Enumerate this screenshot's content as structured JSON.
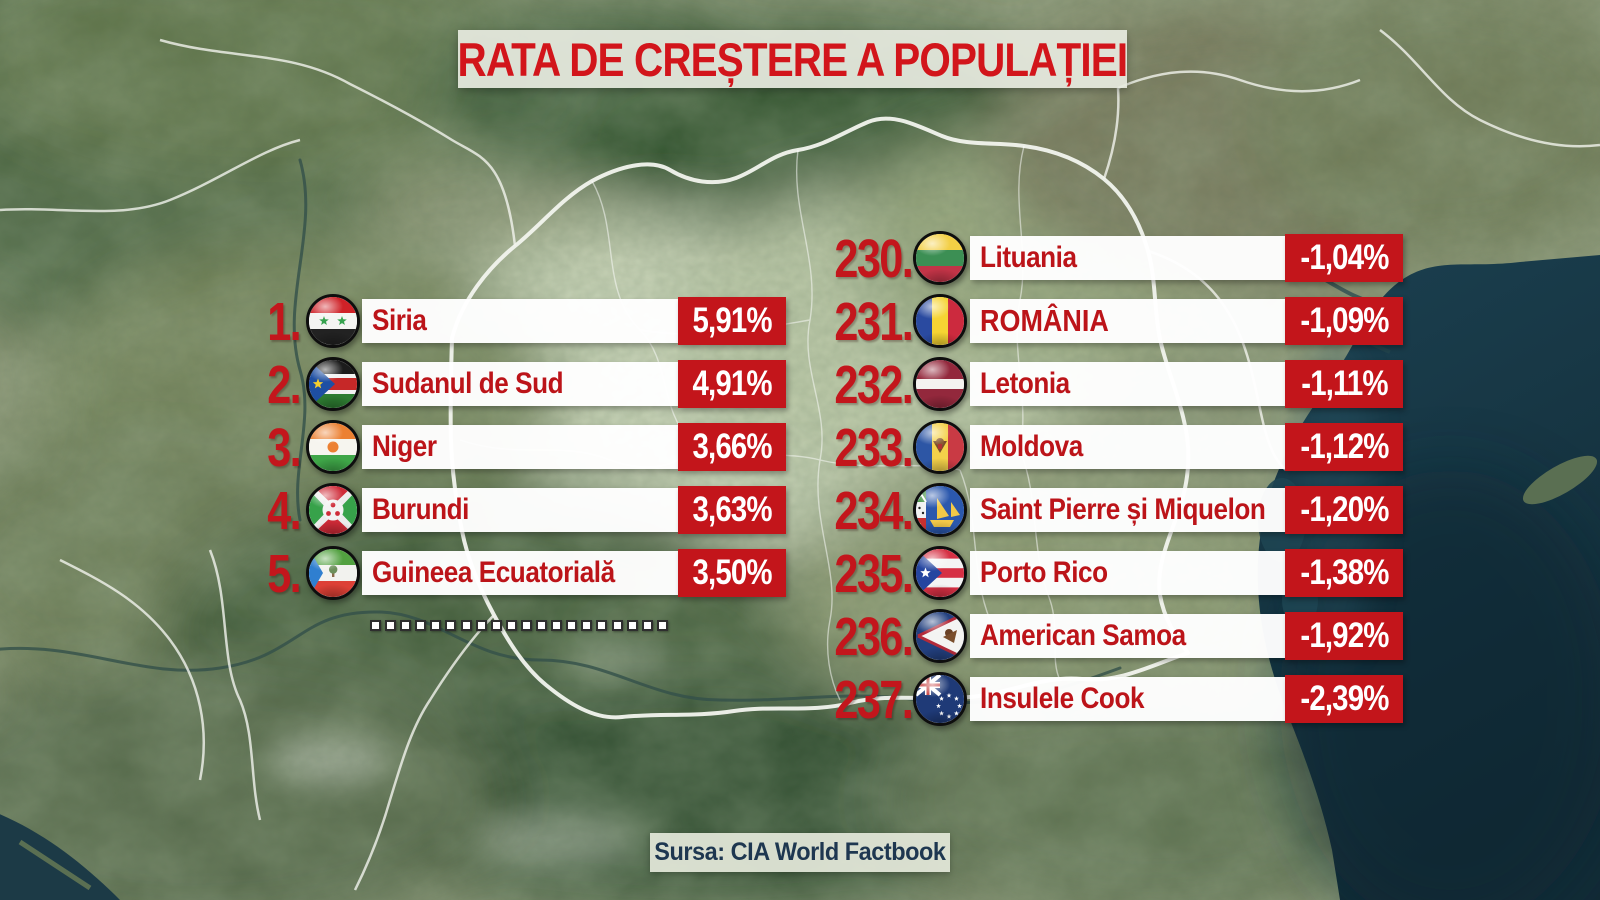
{
  "title": "RATA DE CREȘTERE A POPULAȚIEI",
  "source": "Sursa: CIA World Factbook",
  "colors": {
    "accent_red": "#c3151b",
    "title_red": "#d2151b",
    "country_red": "#bc1419",
    "value_text": "#ffffff",
    "source_text": "#1e3750",
    "sea": "#16323d"
  },
  "left_list": [
    {
      "rank": "1.",
      "country": "Siria",
      "value": "5,91%",
      "flag": "syria-flag"
    },
    {
      "rank": "2.",
      "country": "Sudanul de Sud",
      "value": "4,91%",
      "flag": "south-sudan-flag"
    },
    {
      "rank": "3.",
      "country": "Niger",
      "value": "3,66%",
      "flag": "niger-flag"
    },
    {
      "rank": "4.",
      "country": "Burundi",
      "value": "3,63%",
      "flag": "burundi-flag"
    },
    {
      "rank": "5.",
      "country": "Guineea Ecuatorială",
      "value": "3,50%",
      "flag": "equatorial-guinea-flag"
    }
  ],
  "right_list": [
    {
      "rank": "230.",
      "country": "Lituania",
      "value": "-1,04%",
      "flag": "lithuania-flag",
      "emphasis": false
    },
    {
      "rank": "231.",
      "country": "ROMÂNIA",
      "value": "-1,09%",
      "flag": "romania-flag",
      "emphasis": true
    },
    {
      "rank": "232.",
      "country": "Letonia",
      "value": "-1,11%",
      "flag": "latvia-flag",
      "emphasis": false
    },
    {
      "rank": "233.",
      "country": "Moldova",
      "value": "-1,12%",
      "flag": "moldova-flag",
      "emphasis": false
    },
    {
      "rank": "234.",
      "country": "Saint Pierre și Miquelon",
      "value": "-1,20%",
      "flag": "saint-pierre-miquelon-flag",
      "emphasis": false
    },
    {
      "rank": "235.",
      "country": "Porto Rico",
      "value": "-1,38%",
      "flag": "puerto-rico-flag",
      "emphasis": false
    },
    {
      "rank": "236.",
      "country": "American Samoa",
      "value": "-1,92%",
      "flag": "american-samoa-flag",
      "emphasis": false
    },
    {
      "rank": "237.",
      "country": "Insulele Cook",
      "value": "-2,39%",
      "flag": "cook-islands-flag",
      "emphasis": false
    }
  ],
  "separator": {
    "count": 20
  },
  "chart_data": {
    "type": "table",
    "title": "RATA DE CREȘTERE A POPULAȚIEI",
    "columns": [
      "rank",
      "country",
      "growth_rate_percent"
    ],
    "series": [
      {
        "name": "top_5",
        "rows": [
          [
            1,
            "Siria",
            5.91
          ],
          [
            2,
            "Sudanul de Sud",
            4.91
          ],
          [
            3,
            "Niger",
            3.66
          ],
          [
            4,
            "Burundi",
            3.63
          ],
          [
            5,
            "Guineea Ecuatorială",
            3.5
          ]
        ]
      },
      {
        "name": "bottom_ranked_230_237",
        "rows": [
          [
            230,
            "Lituania",
            -1.04
          ],
          [
            231,
            "ROMÂNIA",
            -1.09
          ],
          [
            232,
            "Letonia",
            -1.11
          ],
          [
            233,
            "Moldova",
            -1.12
          ],
          [
            234,
            "Saint Pierre și Miquelon",
            -1.2
          ],
          [
            235,
            "Porto Rico",
            -1.38
          ],
          [
            236,
            "American Samoa",
            -1.92
          ],
          [
            237,
            "Insulele Cook",
            -2.39
          ]
        ]
      }
    ],
    "source": "CIA World Factbook"
  }
}
